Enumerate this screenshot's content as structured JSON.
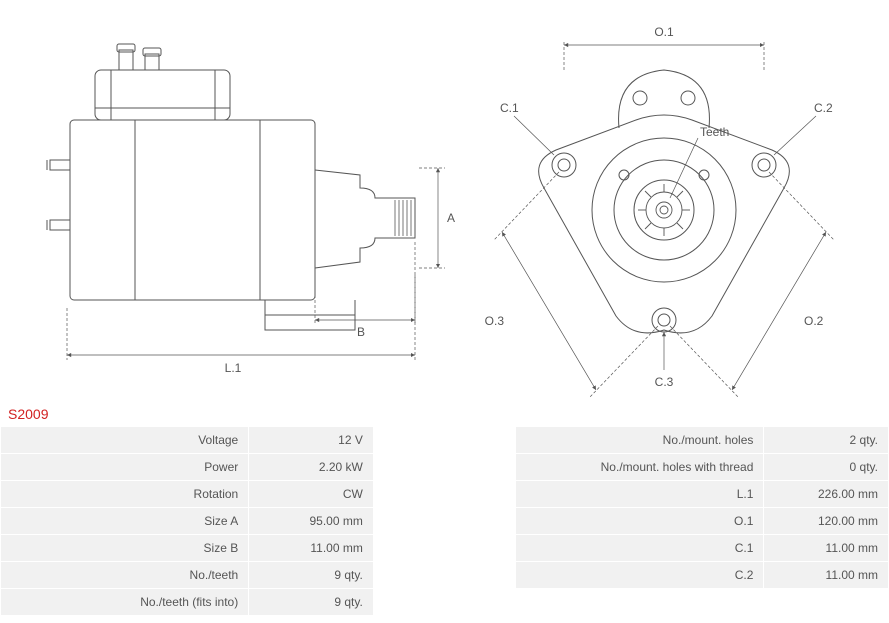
{
  "model": "S2009",
  "diagram_labels": {
    "side": {
      "L1": "L.1",
      "A": "A",
      "B": "B"
    },
    "front": {
      "O1": "O.1",
      "O2": "O.2",
      "O3": "O.3",
      "C1": "C.1",
      "C2": "C.2",
      "C3": "C.3",
      "Teeth": "Teeth"
    }
  },
  "specs_left": [
    {
      "label": "Voltage",
      "value": "12 V"
    },
    {
      "label": "Power",
      "value": "2.20 kW"
    },
    {
      "label": "Rotation",
      "value": "CW"
    },
    {
      "label": "Size A",
      "value": "95.00 mm"
    },
    {
      "label": "Size B",
      "value": "11.00 mm"
    },
    {
      "label": "No./teeth",
      "value": "9 qty."
    },
    {
      "label": "No./teeth (fits into)",
      "value": "9 qty."
    }
  ],
  "specs_right": [
    {
      "label": "No./mount. holes",
      "value": "2 qty."
    },
    {
      "label": "No./mount. holes with thread",
      "value": "0 qty."
    },
    {
      "label": "L.1",
      "value": "226.00 mm"
    },
    {
      "label": "O.1",
      "value": "120.00 mm"
    },
    {
      "label": "C.1",
      "value": "11.00 mm"
    },
    {
      "label": "C.2",
      "value": "11.00 mm"
    }
  ],
  "style": {
    "stroke_color": "#555555",
    "stroke_width": 1,
    "dim_stroke": "#555555",
    "dim_width": 0.8,
    "label_fontsize": 12,
    "model_color": "#d22222",
    "cell_bg": "#f1f1f1",
    "cell_text": "#555555",
    "page_bg": "#ffffff",
    "diagram_type": "engineering-drawing"
  }
}
